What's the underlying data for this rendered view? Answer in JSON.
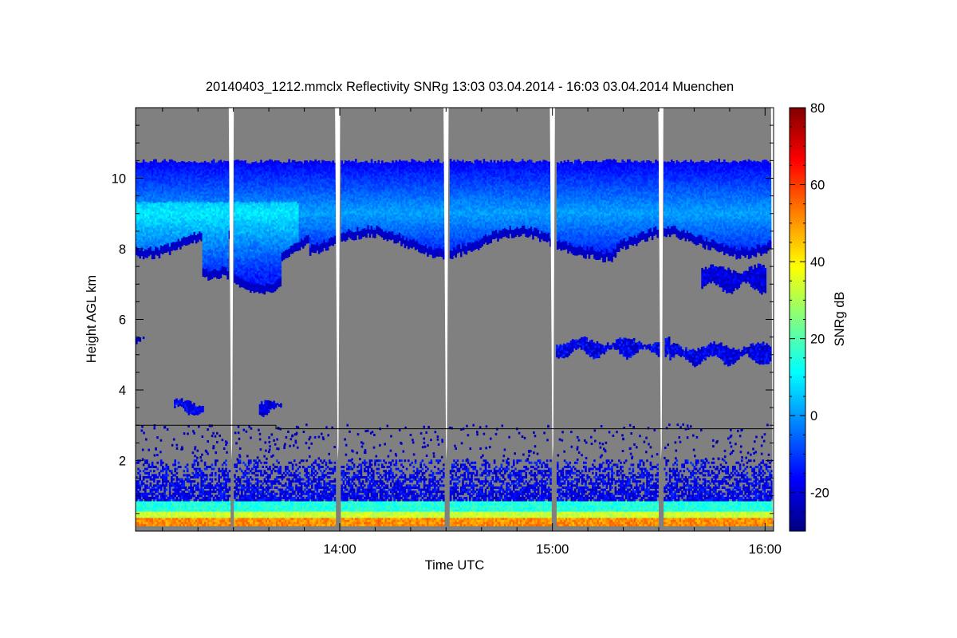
{
  "chart_data": {
    "type": "heatmap",
    "title": "20140403_1212.mmclx Reflectivity SNRg   13:03 03.04.2014 - 16:03 03.04.2014 Muenchen",
    "xlabel": "Time UTC",
    "ylabel": "Height AGL km",
    "x_range_hours": [
      13.04,
      16.04
    ],
    "xlim": [
      "13:03",
      "16:03"
    ],
    "x_ticks": [
      {
        "value": 14.0,
        "label": "14:00"
      },
      {
        "value": 15.0,
        "label": "15:00"
      },
      {
        "value": 16.0,
        "label": "16:00"
      }
    ],
    "ylim": [
      0,
      12
    ],
    "y_ticks": [
      {
        "value": 2,
        "label": "2"
      },
      {
        "value": 4,
        "label": "4"
      },
      {
        "value": 6,
        "label": "6"
      },
      {
        "value": 8,
        "label": "8"
      },
      {
        "value": 10,
        "label": "10"
      }
    ],
    "colorbar": {
      "label": "SNRg dB",
      "range": [
        -30,
        80
      ],
      "ticks": [
        {
          "value": -20,
          "label": "-20"
        },
        {
          "value": 0,
          "label": "0"
        },
        {
          "value": 20,
          "label": "20"
        },
        {
          "value": 40,
          "label": "40"
        },
        {
          "value": 60,
          "label": "60"
        },
        {
          "value": 80,
          "label": "80"
        }
      ],
      "colormap": [
        "#000080",
        "#0000ff",
        "#0080ff",
        "#00ffff",
        "#80ff80",
        "#ffff00",
        "#ff8000",
        "#ff0000",
        "#800000"
      ]
    },
    "background_color": "#808080",
    "colors": {
      "no_signal": "#808080",
      "missing": "#ffffff",
      "boundary_line": "#000000"
    },
    "gaps": [
      13.49,
      13.99,
      14.5,
      15.0,
      15.51,
      16.04
    ],
    "scan_gaps": [
      13.45,
      13.94,
      14.48,
      14.97,
      15.46
    ],
    "boundary_line": [
      {
        "t": 13.04,
        "h": 3.0
      },
      {
        "t": 13.7,
        "h": 3.0
      },
      {
        "t": 13.7,
        "h": 2.9
      },
      {
        "t": 16.04,
        "h": 2.9
      }
    ],
    "features": [
      {
        "name": "cirrus",
        "type": "cloud",
        "t0": 13.04,
        "t1": 16.04,
        "h_top": 10.5,
        "h_base": 8.0,
        "snr_range_db": [
          -25,
          5
        ]
      },
      {
        "name": "cirrus fall streak",
        "type": "cloud",
        "t0": 13.2,
        "t1": 13.8,
        "h_top": 8.0,
        "h_base": 6.7,
        "snr_range_db": [
          -20,
          0
        ]
      },
      {
        "name": "mid-level layer",
        "type": "cloud",
        "t0": 15.0,
        "t1": 16.04,
        "h_top": 5.5,
        "h_base": 4.8,
        "snr_range_db": [
          -25,
          -10
        ]
      },
      {
        "name": "mid-level patches",
        "type": "cloud",
        "t0": 13.2,
        "t1": 13.8,
        "h_top": 3.7,
        "h_base": 3.3,
        "snr_range_db": [
          -25,
          -10
        ]
      },
      {
        "name": "upper layer",
        "type": "cloud",
        "t0": 15.6,
        "t1": 16.04,
        "h_top": 7.5,
        "h_base": 6.8,
        "snr_range_db": [
          -25,
          -10
        ]
      },
      {
        "name": "boundary layer",
        "type": "clutter",
        "t0": 13.04,
        "t1": 16.04,
        "h_top": 2.0,
        "h_base": 0.2,
        "snr_range_db": [
          -20,
          60
        ]
      }
    ]
  }
}
